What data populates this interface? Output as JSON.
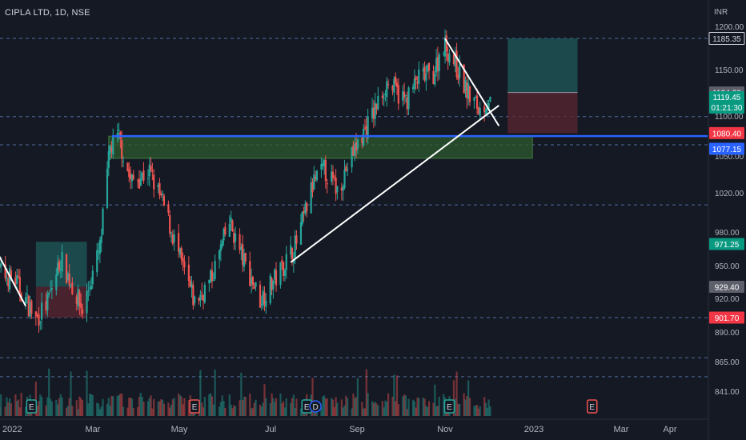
{
  "header": {
    "symbol": "CIPLA LTD, 1D, NSE",
    "currency": "INR"
  },
  "colors": {
    "background": "#151924",
    "up": "#26a69a",
    "down": "#ef5350",
    "grid_dash": "#4f6b9e",
    "support_line": "#2962ff",
    "trendline": "#ffffff",
    "target_zone": "#1f5a5a",
    "stop_zone": "#5a2630",
    "demand_zone": "#2e5a2e"
  },
  "chart_data": {
    "type": "candlestick",
    "ylabel": "INR",
    "y_axis_scale": "log",
    "ylim": [
      826,
      1215
    ],
    "y_ticks": [
      "1200.00",
      "1150.00",
      "1100.00",
      "1050.00",
      "1020.00",
      "980.00",
      "950.00",
      "920.00",
      "890.00",
      "865.00",
      "841.00"
    ],
    "x_ticks": [
      "2022",
      "Mar",
      "May",
      "Jul",
      "Sep",
      "Nov",
      "2023",
      "Mar",
      "Apr"
    ],
    "price_labels": [
      {
        "value": 1185.35,
        "text": "1185.35",
        "style": "outline"
      },
      {
        "value": 1124.2,
        "text": "1124.20",
        "style": "gray"
      },
      {
        "value": 1119.45,
        "text": "1119.45",
        "sub": "01:21:30",
        "style": "teal"
      },
      {
        "value": 1080.4,
        "text": "1080.40",
        "style": "red"
      },
      {
        "value": 1077.15,
        "text": "1077.15",
        "style": "blue"
      },
      {
        "value": 971.25,
        "text": "971.25",
        "style": "teal"
      },
      {
        "value": 929.4,
        "text": "929.40",
        "style": "gray"
      },
      {
        "value": 901.7,
        "text": "901.70",
        "style": "red"
      }
    ],
    "horizontal_levels": [
      1185.35,
      1098,
      1068,
      1007,
      901.7,
      867,
      851
    ],
    "support_level": 1077.15,
    "event_markers": [
      {
        "date": "2022-01-21",
        "text": "E",
        "kind": "earnings"
      },
      {
        "date": "2022-05-13",
        "text": "E",
        "kind": "earnings-red"
      },
      {
        "date": "2022-07-29",
        "text": "E",
        "kind": "earnings"
      },
      {
        "date": "2022-08-04",
        "text": "D",
        "kind": "dividend"
      },
      {
        "date": "2022-11-04",
        "text": "E",
        "kind": "earnings"
      },
      {
        "date": "2023-02-10",
        "text": "E",
        "kind": "earnings-red"
      }
    ],
    "anchors": [
      {
        "date": "2021-12-27",
        "close": 945
      },
      {
        "date": "2022-01-10",
        "close": 935
      },
      {
        "date": "2022-01-24",
        "close": 900
      },
      {
        "date": "2022-02-01",
        "close": 915
      },
      {
        "date": "2022-02-10",
        "close": 955
      },
      {
        "date": "2022-02-18",
        "close": 930
      },
      {
        "date": "2022-02-25",
        "close": 908
      },
      {
        "date": "2022-03-09",
        "close": 965
      },
      {
        "date": "2022-03-16",
        "close": 1065
      },
      {
        "date": "2022-03-22",
        "close": 1075
      },
      {
        "date": "2022-03-30",
        "close": 1030
      },
      {
        "date": "2022-04-12",
        "close": 1040
      },
      {
        "date": "2022-04-22",
        "close": 1005
      },
      {
        "date": "2022-05-04",
        "close": 950
      },
      {
        "date": "2022-05-13",
        "close": 915
      },
      {
        "date": "2022-05-24",
        "close": 935
      },
      {
        "date": "2022-06-06",
        "close": 990
      },
      {
        "date": "2022-06-15",
        "close": 955
      },
      {
        "date": "2022-06-27",
        "close": 918
      },
      {
        "date": "2022-07-08",
        "close": 938
      },
      {
        "date": "2022-07-22",
        "close": 970
      },
      {
        "date": "2022-08-03",
        "close": 1030
      },
      {
        "date": "2022-08-10",
        "close": 1042
      },
      {
        "date": "2022-08-19",
        "close": 1022
      },
      {
        "date": "2022-08-30",
        "close": 1060
      },
      {
        "date": "2022-09-13",
        "close": 1102
      },
      {
        "date": "2022-09-22",
        "close": 1135
      },
      {
        "date": "2022-10-05",
        "close": 1115
      },
      {
        "date": "2022-10-14",
        "close": 1140
      },
      {
        "date": "2022-10-24",
        "close": 1145
      },
      {
        "date": "2022-10-31",
        "close": 1180
      },
      {
        "date": "2022-11-07",
        "close": 1160
      },
      {
        "date": "2022-11-16",
        "close": 1125
      },
      {
        "date": "2022-11-25",
        "close": 1105
      },
      {
        "date": "2022-12-02",
        "close": 1119.45
      }
    ],
    "trendlines": [
      {
        "from": {
          "date": "2021-12-27",
          "price": 965
        },
        "to": {
          "date": "2022-01-17",
          "price": 912
        }
      },
      {
        "from": {
          "date": "2022-07-18",
          "price": 952
        },
        "to": {
          "date": "2022-12-08",
          "price": 1110
        }
      },
      {
        "from": {
          "date": "2022-11-01",
          "price": 1185
        },
        "to": {
          "date": "2022-12-08",
          "price": 1088
        }
      }
    ],
    "zones": [
      {
        "kind": "target",
        "from": "2022-01-24",
        "to": "2022-02-28",
        "top": 971.25,
        "bottom": 929.4
      },
      {
        "kind": "stop",
        "from": "2022-01-24",
        "to": "2022-02-28",
        "top": 929.4,
        "bottom": 901.7
      },
      {
        "kind": "target",
        "from": "2022-12-14",
        "to": "2023-01-31",
        "top": 1185.35,
        "bottom": 1124.2
      },
      {
        "kind": "stop",
        "from": "2022-12-14",
        "to": "2023-01-31",
        "top": 1124.2,
        "bottom": 1080.4
      },
      {
        "kind": "demand",
        "from": "2022-03-15",
        "to": "2022-12-31",
        "top": 1077.15,
        "bottom": 1054
      }
    ]
  }
}
